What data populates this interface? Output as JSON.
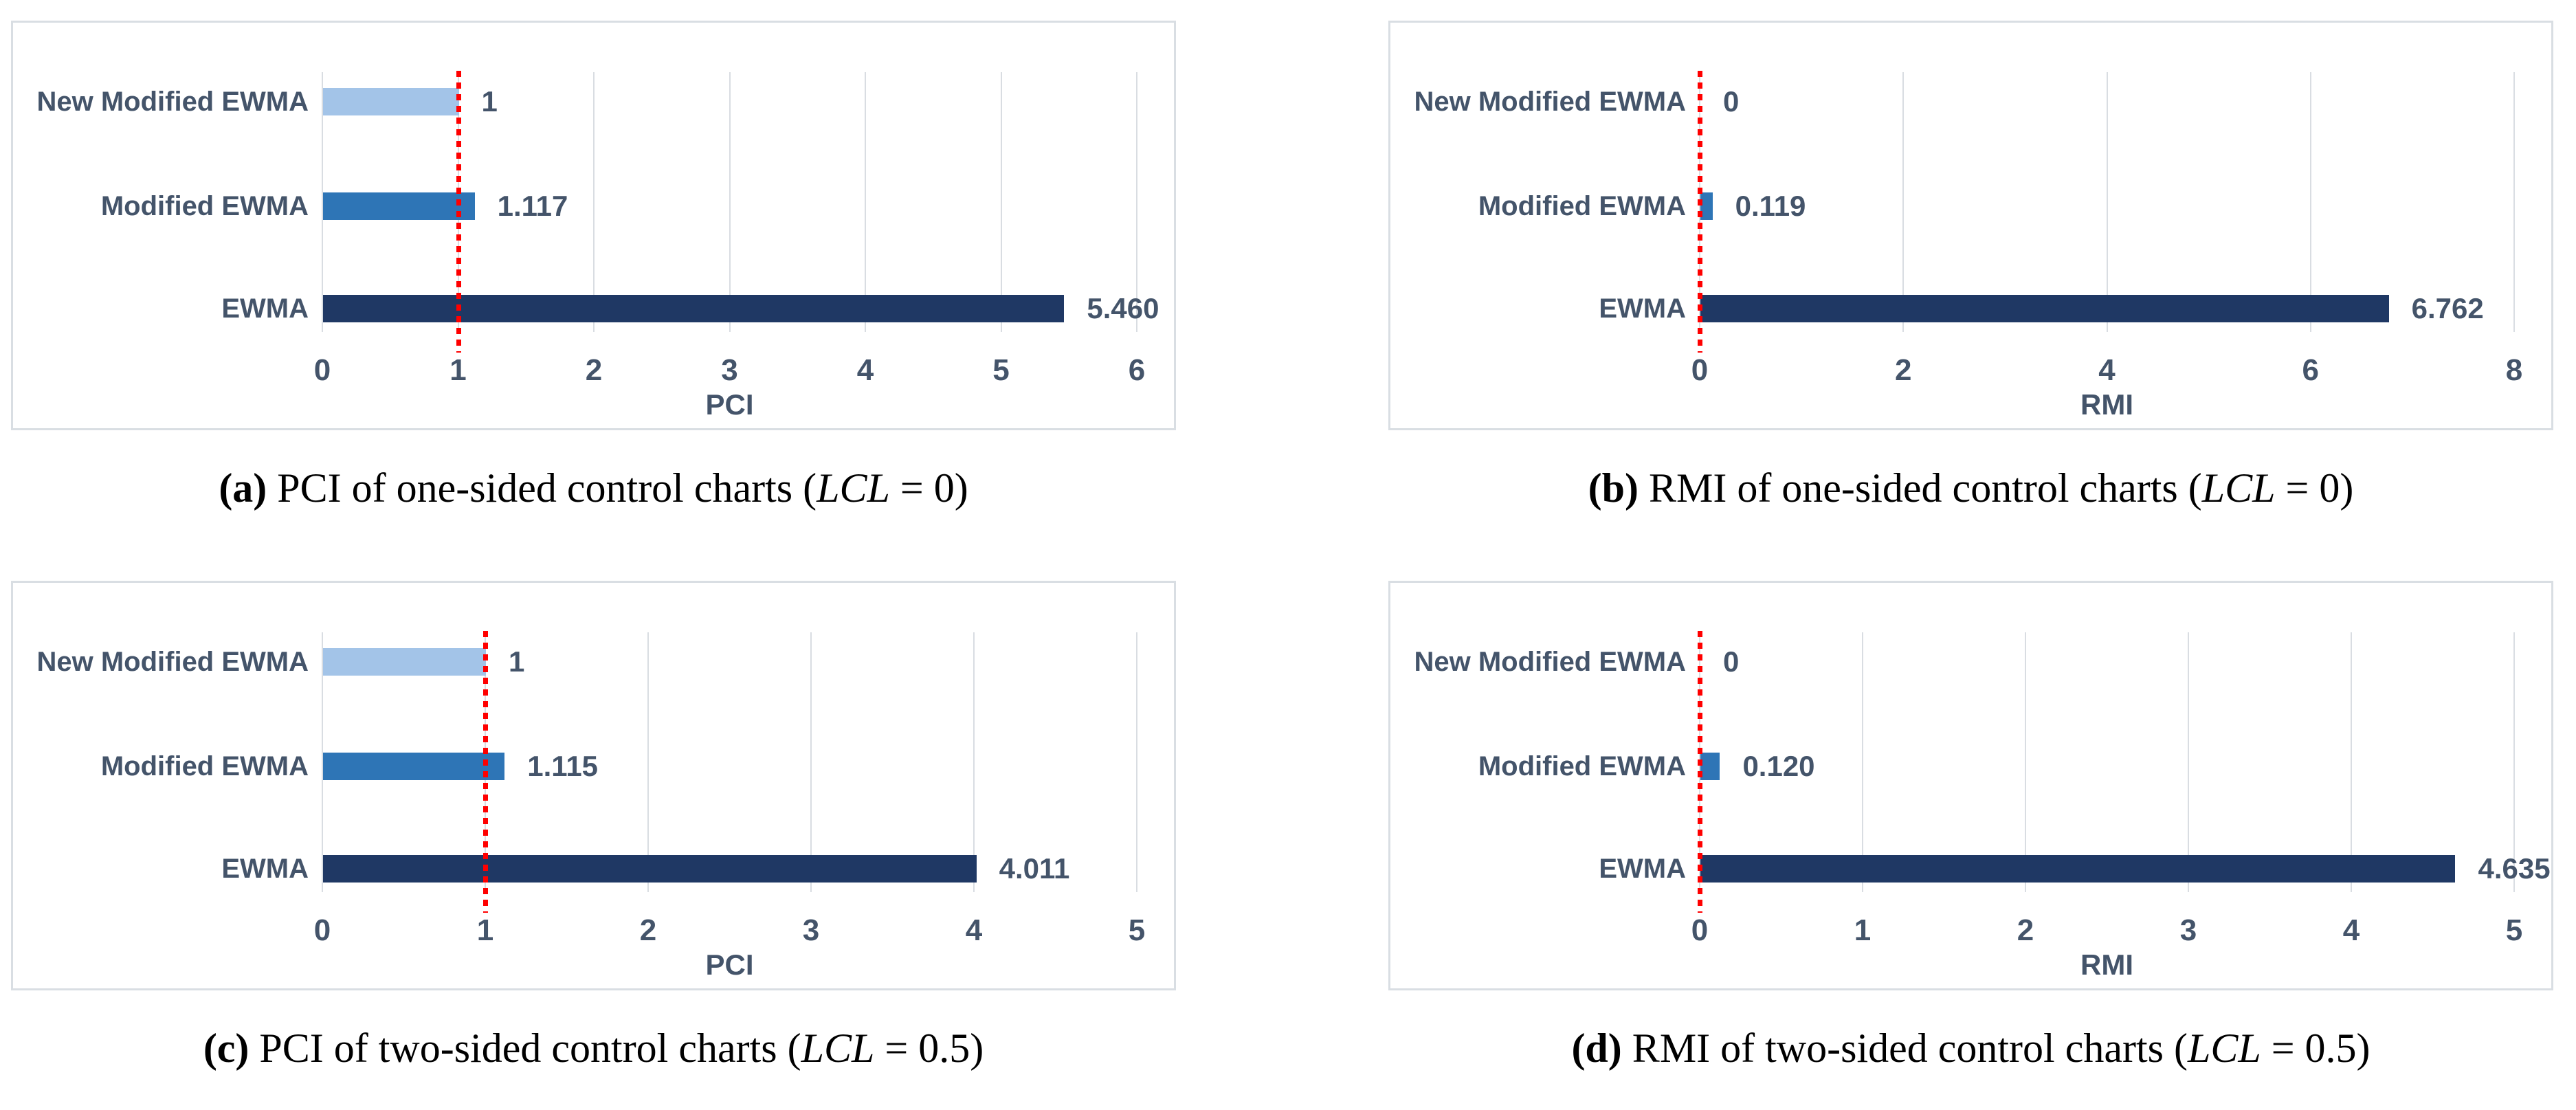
{
  "chart_data": [
    {
      "type": "bar",
      "orientation": "horizontal",
      "title": "(a) PCI of one-sided control charts (LCL = 0)",
      "categories": [
        "New Modified EWMA",
        "Modified EWMA",
        "EWMA"
      ],
      "values": [
        1,
        1.117,
        5.46
      ],
      "value_labels": [
        "1",
        "1.117",
        "5.460"
      ],
      "xlabel": "PCI",
      "xlim": [
        0,
        6
      ],
      "xticks": [
        0,
        1,
        2,
        3,
        4,
        5,
        6
      ],
      "xtick_labels": [
        "0",
        "1",
        "2",
        "3",
        "4",
        "5",
        "6"
      ],
      "reference_line_x": 1,
      "grid": true,
      "legend": "none"
    },
    {
      "type": "bar",
      "orientation": "horizontal",
      "title": "(b) RMI of one-sided control charts (LCL = 0)",
      "categories": [
        "New Modified EWMA",
        "Modified EWMA",
        "EWMA"
      ],
      "values": [
        0,
        0.119,
        6.762
      ],
      "value_labels": [
        "0",
        "0.119",
        "6.762"
      ],
      "xlabel": "RMI",
      "xlim": [
        0,
        8
      ],
      "xticks": [
        0,
        2,
        4,
        6,
        8
      ],
      "xtick_labels": [
        "0",
        "2",
        "4",
        "6",
        "8"
      ],
      "reference_line_x": 0,
      "grid": true,
      "legend": "none"
    },
    {
      "type": "bar",
      "orientation": "horizontal",
      "title": "(c) PCI of two-sided control charts (LCL = 0.5)",
      "categories": [
        "New Modified EWMA",
        "Modified EWMA",
        "EWMA"
      ],
      "values": [
        1,
        1.115,
        4.011
      ],
      "value_labels": [
        "1",
        "1.115",
        "4.011"
      ],
      "xlabel": "PCI",
      "xlim": [
        0,
        5
      ],
      "xticks": [
        0,
        1,
        2,
        3,
        4,
        5
      ],
      "xtick_labels": [
        "0",
        "1",
        "2",
        "3",
        "4",
        "5"
      ],
      "reference_line_x": 1,
      "grid": true,
      "legend": "none"
    },
    {
      "type": "bar",
      "orientation": "horizontal",
      "title": "(d) RMI of two-sided control charts (LCL = 0.5)",
      "categories": [
        "New Modified EWMA",
        "Modified EWMA",
        "EWMA"
      ],
      "values": [
        0,
        0.12,
        4.635
      ],
      "value_labels": [
        "0",
        "0.120",
        "4.635"
      ],
      "xlabel": "RMI",
      "xlim": [
        0,
        5
      ],
      "xticks": [
        0,
        1,
        2,
        3,
        4,
        5
      ],
      "xtick_labels": [
        "0",
        "1",
        "2",
        "3",
        "4",
        "5"
      ],
      "reference_line_x": 0,
      "grid": true,
      "legend": "none"
    }
  ],
  "captions": [
    {
      "label": "(a)",
      "before_math": " PCI of one-sided control charts (",
      "math_var": "LCL",
      "math_rest": " = 0)"
    },
    {
      "label": "(b)",
      "before_math": " RMI of one-sided control charts (",
      "math_var": "LCL",
      "math_rest": " = 0)"
    },
    {
      "label": "(c)",
      "before_math": " PCI of two-sided control charts (",
      "math_var": "LCL",
      "math_rest": " = 0.5)"
    },
    {
      "label": "(d)",
      "before_math": " RMI of two-sided control charts (",
      "math_var": "LCL",
      "math_rest": " = 0.5)"
    }
  ],
  "colors": {
    "bar_light": "#A3C4E8",
    "bar_medium": "#2E75B6",
    "bar_dark": "#1F3864",
    "text": "#44546A",
    "grid": "#D9DDE2",
    "reference_line": "#FF0000",
    "panel_border": "#D9DEE3"
  }
}
